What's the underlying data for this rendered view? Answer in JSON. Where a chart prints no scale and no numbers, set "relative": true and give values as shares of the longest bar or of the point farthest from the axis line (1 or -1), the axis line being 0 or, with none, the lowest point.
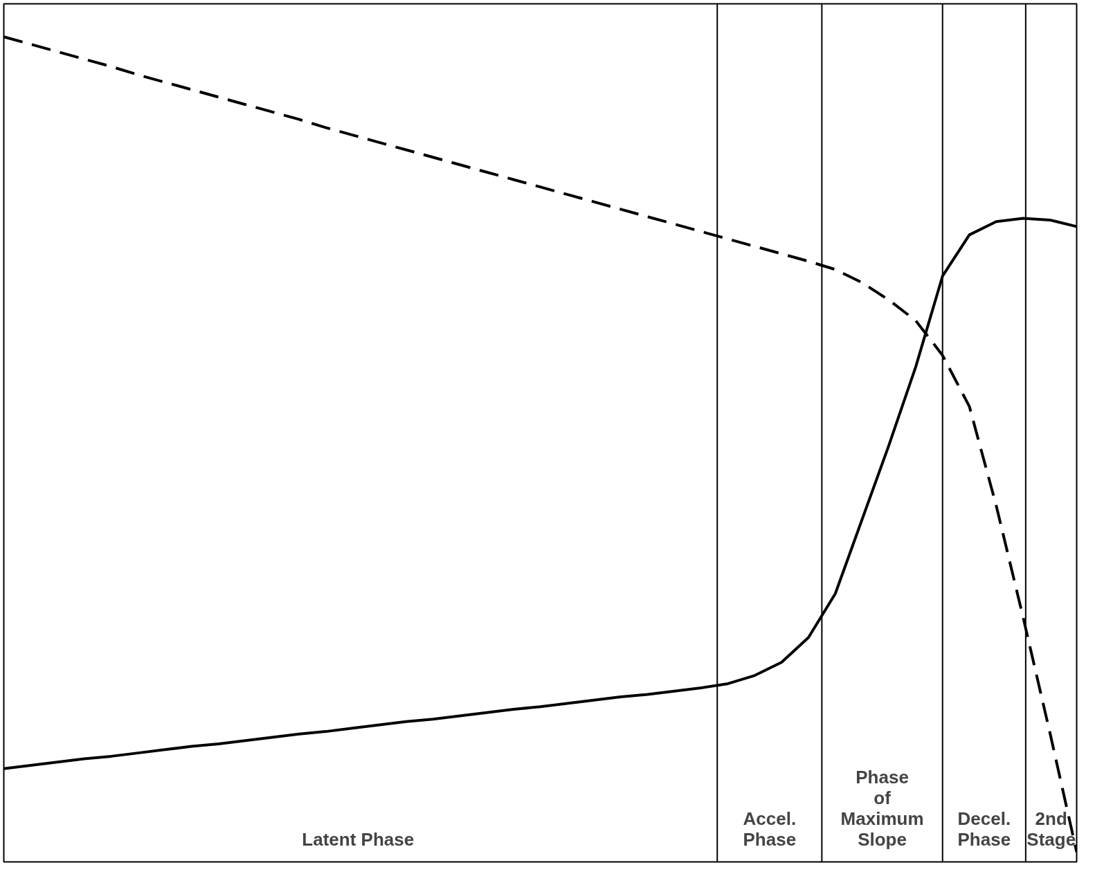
{
  "chart_data": {
    "type": "line",
    "relative": true,
    "tick_labels": false,
    "grid": false,
    "categories": [
      null,
      null,
      null,
      null,
      null,
      null,
      null,
      null,
      null,
      null,
      null,
      null,
      null,
      null,
      null,
      null,
      null,
      null,
      null,
      null,
      null,
      null,
      null,
      null,
      null,
      null,
      null,
      null,
      null,
      null,
      null,
      null,
      null,
      null,
      null,
      null,
      null,
      null,
      null,
      null,
      null
    ],
    "series": [
      {
        "color": "#000000",
        "line_style": "dashed",
        "values": [
          1.0,
          0.991,
          0.982,
          0.973,
          0.964,
          0.954,
          0.945,
          0.936,
          0.927,
          0.918,
          0.909,
          0.9,
          0.89,
          0.881,
          0.872,
          0.863,
          0.854,
          0.845,
          0.836,
          0.827,
          0.818,
          0.809,
          0.8,
          0.791,
          0.782,
          0.773,
          0.764,
          0.755,
          0.746,
          0.737,
          0.728,
          0.718,
          0.702,
          0.681,
          0.656,
          0.614,
          0.552,
          0.432,
          0.297,
          0.157,
          0.012
        ]
      },
      {
        "color": "#000000",
        "line_style": "solid",
        "values": [
          0.113,
          0.117,
          0.121,
          0.125,
          0.128,
          0.132,
          0.136,
          0.14,
          0.143,
          0.147,
          0.151,
          0.155,
          0.158,
          0.162,
          0.166,
          0.17,
          0.173,
          0.177,
          0.181,
          0.185,
          0.188,
          0.192,
          0.196,
          0.2,
          0.203,
          0.207,
          0.211,
          0.216,
          0.226,
          0.242,
          0.272,
          0.325,
          0.415,
          0.505,
          0.6,
          0.71,
          0.76,
          0.776,
          0.78,
          0.778,
          0.77
        ]
      }
    ],
    "annotations": [
      "Latent  Phase",
      "Accel.\nPhase",
      "Phase\nof\nMaximum\nSlope",
      "Decel.\nPhase",
      "2nd\nStage"
    ]
  }
}
